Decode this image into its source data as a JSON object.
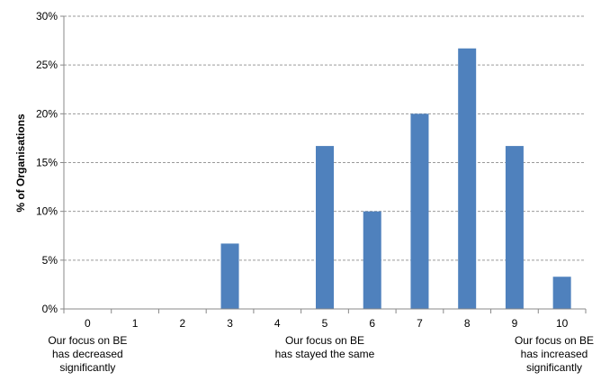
{
  "chart_data": {
    "type": "bar",
    "categories": [
      "0",
      "1",
      "2",
      "3",
      "4",
      "5",
      "6",
      "7",
      "8",
      "9",
      "10"
    ],
    "values": [
      0,
      0,
      0,
      6.7,
      0,
      16.7,
      10.0,
      20.0,
      26.7,
      16.7,
      3.3
    ],
    "value_unit": "%",
    "title": "",
    "xlabel": "",
    "ylabel": "% of Organisations",
    "ylim": [
      0,
      30
    ],
    "yticks": [
      0,
      5,
      10,
      15,
      20,
      25,
      30
    ],
    "ytick_labels": [
      "0%",
      "5%",
      "10%",
      "15%",
      "20%",
      "25%",
      "30%"
    ],
    "grid": true,
    "legend": "none",
    "bar_color": "#4F81BD",
    "annotations": [
      {
        "category": "0",
        "lines": [
          "Our focus on BE",
          "has decreased",
          "significantly"
        ]
      },
      {
        "category": "5",
        "lines": [
          "Our focus on BE",
          "has stayed the same"
        ]
      },
      {
        "category": "10",
        "lines": [
          "Our focus on BE",
          "has increased",
          "significantly"
        ]
      }
    ]
  }
}
